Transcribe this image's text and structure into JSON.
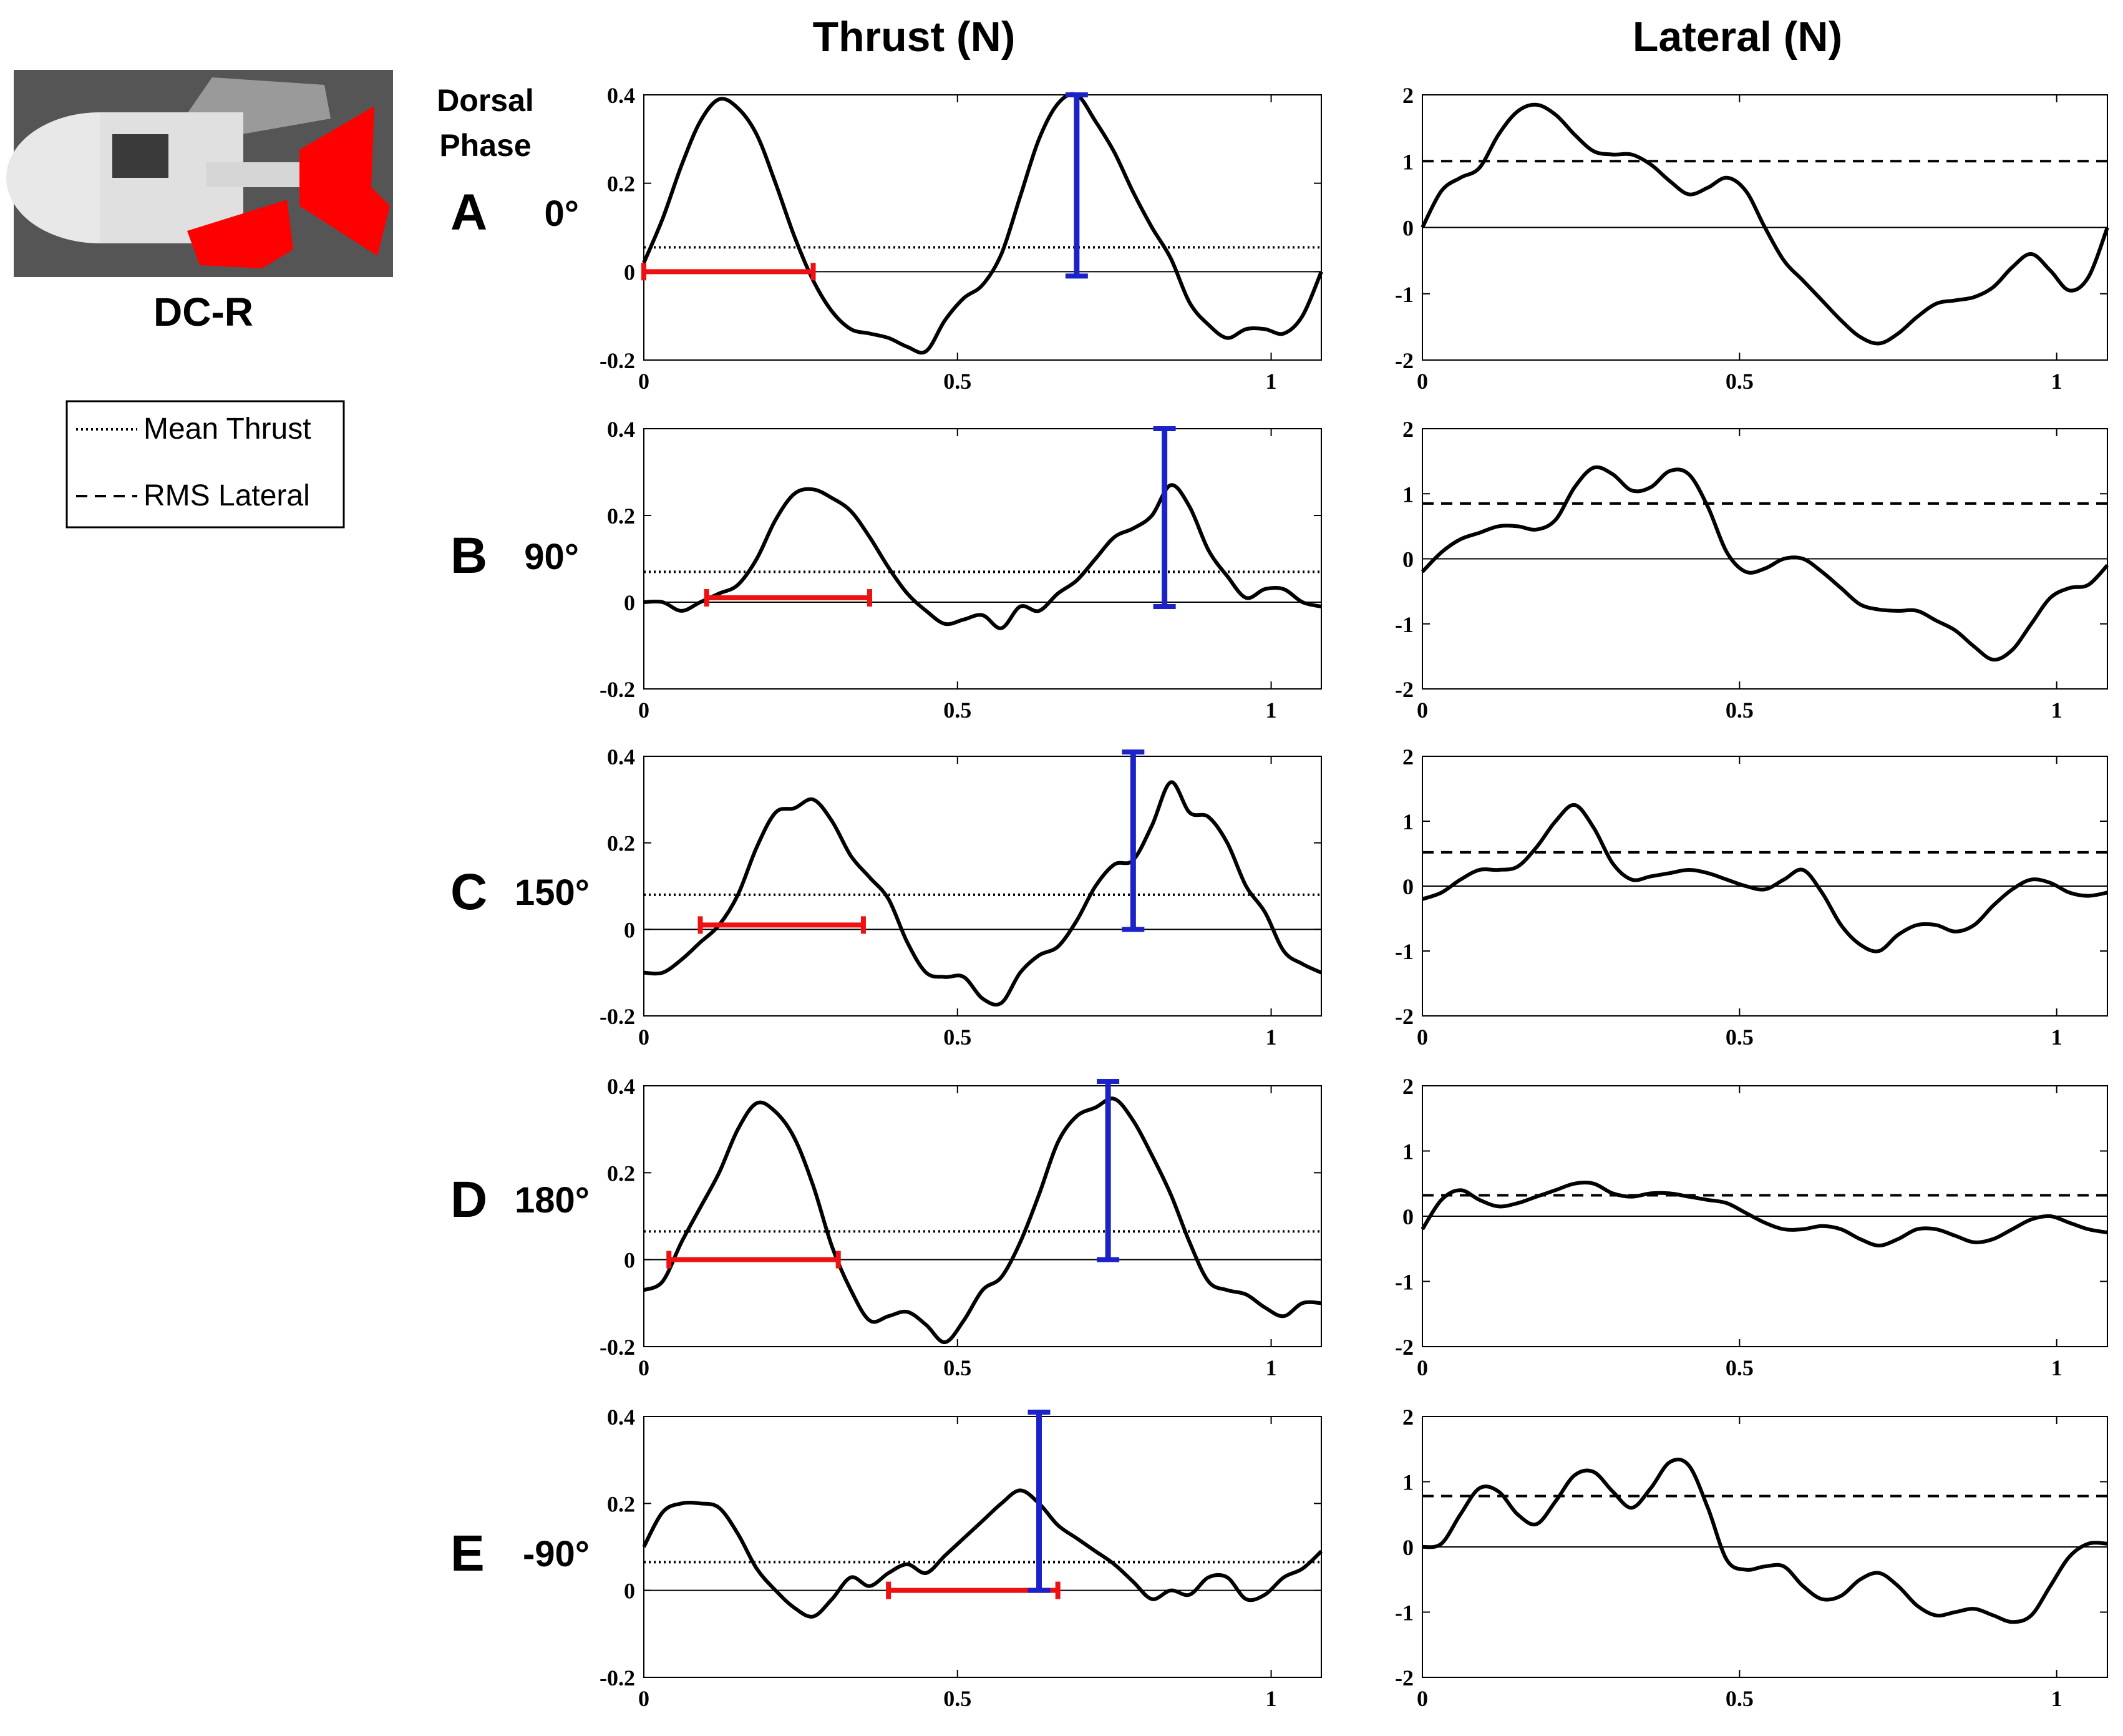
{
  "figure": {
    "model_label": "DC-R",
    "column_titles": [
      "Thrust (N)",
      "Lateral (N)"
    ],
    "dorsal_label_line1": "Dorsal",
    "dorsal_label_line2": "Phase",
    "legend": {
      "mean_label": "Mean Thrust",
      "rms_label": "RMS Lateral"
    },
    "colors": {
      "trace": "#000000",
      "red_bar": "#ee1111",
      "blue_bar": "#1a22c8",
      "fin": "#ff0000"
    }
  },
  "chart_data": [
    {
      "type": "line",
      "row": "A",
      "phase_label": "0°",
      "quantity": "Thrust (N)",
      "xlim": [
        0,
        1.08
      ],
      "ylim": [
        -0.2,
        0.4
      ],
      "xticks": [
        0,
        0.5,
        1
      ],
      "xtick_labels": [
        "0",
        "0.5",
        "1"
      ],
      "yticks": [
        -0.2,
        0,
        0.2,
        0.4
      ],
      "ytick_labels": [
        "-0.2",
        "0",
        "0.2",
        "0.4"
      ],
      "x": [
        0,
        0.03,
        0.06,
        0.09,
        0.12,
        0.15,
        0.18,
        0.21,
        0.24,
        0.27,
        0.3,
        0.33,
        0.36,
        0.39,
        0.42,
        0.45,
        0.48,
        0.51,
        0.54,
        0.57,
        0.6,
        0.63,
        0.66,
        0.69,
        0.72,
        0.75,
        0.78,
        0.81,
        0.84,
        0.87,
        0.9,
        0.93,
        0.96,
        0.99,
        1.02,
        1.05,
        1.08
      ],
      "y": [
        0.02,
        0.12,
        0.24,
        0.34,
        0.39,
        0.37,
        0.31,
        0.2,
        0.08,
        -0.02,
        -0.09,
        -0.13,
        -0.14,
        -0.15,
        -0.17,
        -0.18,
        -0.11,
        -0.06,
        -0.03,
        0.04,
        0.17,
        0.3,
        0.38,
        0.4,
        0.34,
        0.27,
        0.18,
        0.1,
        0.03,
        -0.07,
        -0.12,
        -0.15,
        -0.13,
        -0.13,
        -0.14,
        -0.1,
        0.0
      ],
      "mean": 0.055,
      "red_bar": {
        "x0": 0.0,
        "x1": 0.27,
        "y": 0.0
      },
      "blue_bar": {
        "x": 0.69,
        "y0": -0.01,
        "y1": 0.4
      }
    },
    {
      "type": "line",
      "row": "A",
      "phase_label": "0°",
      "quantity": "Lateral (N)",
      "xlim": [
        0,
        1.08
      ],
      "ylim": [
        -2,
        2
      ],
      "xticks": [
        0,
        0.5,
        1
      ],
      "xtick_labels": [
        "0",
        "0.5",
        "1"
      ],
      "yticks": [
        -2,
        -1,
        0,
        1,
        2
      ],
      "ytick_labels": [
        "-2",
        "-1",
        "0",
        "1",
        "2"
      ],
      "x": [
        0,
        0.03,
        0.06,
        0.09,
        0.12,
        0.15,
        0.18,
        0.21,
        0.24,
        0.27,
        0.3,
        0.33,
        0.36,
        0.39,
        0.42,
        0.45,
        0.48,
        0.51,
        0.54,
        0.57,
        0.6,
        0.63,
        0.66,
        0.69,
        0.72,
        0.75,
        0.78,
        0.81,
        0.84,
        0.87,
        0.9,
        0.93,
        0.96,
        0.99,
        1.02,
        1.05,
        1.08
      ],
      "y": [
        0.0,
        0.55,
        0.75,
        0.9,
        1.4,
        1.75,
        1.85,
        1.7,
        1.4,
        1.15,
        1.1,
        1.1,
        0.95,
        0.7,
        0.5,
        0.6,
        0.75,
        0.55,
        0.0,
        -0.5,
        -0.8,
        -1.1,
        -1.4,
        -1.65,
        -1.75,
        -1.6,
        -1.35,
        -1.15,
        -1.1,
        -1.05,
        -0.9,
        -0.6,
        -0.4,
        -0.65,
        -0.95,
        -0.75,
        0.0
      ],
      "rms": 1.0
    },
    {
      "type": "line",
      "row": "B",
      "phase_label": "90°",
      "quantity": "Thrust (N)",
      "xlim": [
        0,
        1.08
      ],
      "ylim": [
        -0.2,
        0.4
      ],
      "xticks": [
        0,
        0.5,
        1
      ],
      "xtick_labels": [
        "0",
        "0.5",
        "1"
      ],
      "yticks": [
        -0.2,
        0,
        0.2,
        0.4
      ],
      "ytick_labels": [
        "-0.2",
        "0",
        "0.2",
        "0.4"
      ],
      "x": [
        0,
        0.03,
        0.06,
        0.09,
        0.12,
        0.15,
        0.18,
        0.21,
        0.24,
        0.27,
        0.3,
        0.33,
        0.36,
        0.39,
        0.42,
        0.45,
        0.48,
        0.51,
        0.54,
        0.57,
        0.6,
        0.63,
        0.66,
        0.69,
        0.72,
        0.75,
        0.78,
        0.81,
        0.84,
        0.87,
        0.9,
        0.93,
        0.96,
        0.99,
        1.02,
        1.05,
        1.08
      ],
      "y": [
        0.0,
        0.0,
        -0.02,
        0.0,
        0.02,
        0.04,
        0.1,
        0.19,
        0.25,
        0.26,
        0.24,
        0.21,
        0.15,
        0.08,
        0.02,
        -0.02,
        -0.05,
        -0.04,
        -0.03,
        -0.06,
        -0.01,
        -0.02,
        0.02,
        0.05,
        0.1,
        0.15,
        0.17,
        0.2,
        0.27,
        0.22,
        0.12,
        0.06,
        0.01,
        0.03,
        0.03,
        0.0,
        -0.01
      ],
      "mean": 0.07,
      "red_bar": {
        "x0": 0.1,
        "x1": 0.36,
        "y": 0.01
      },
      "blue_bar": {
        "x": 0.83,
        "y0": -0.01,
        "y1": 0.4
      }
    },
    {
      "type": "line",
      "row": "B",
      "phase_label": "90°",
      "quantity": "Lateral (N)",
      "xlim": [
        0,
        1.08
      ],
      "ylim": [
        -2,
        2
      ],
      "xticks": [
        0,
        0.5,
        1
      ],
      "xtick_labels": [
        "0",
        "0.5",
        "1"
      ],
      "yticks": [
        -2,
        -1,
        0,
        1,
        2
      ],
      "ytick_labels": [
        "-2",
        "-1",
        "0",
        "1",
        "2"
      ],
      "x": [
        0,
        0.03,
        0.06,
        0.09,
        0.12,
        0.15,
        0.18,
        0.21,
        0.24,
        0.27,
        0.3,
        0.33,
        0.36,
        0.39,
        0.42,
        0.45,
        0.48,
        0.51,
        0.54,
        0.57,
        0.6,
        0.63,
        0.66,
        0.69,
        0.72,
        0.75,
        0.78,
        0.81,
        0.84,
        0.87,
        0.9,
        0.93,
        0.96,
        0.99,
        1.02,
        1.05,
        1.08
      ],
      "y": [
        -0.2,
        0.1,
        0.3,
        0.4,
        0.5,
        0.5,
        0.45,
        0.6,
        1.1,
        1.4,
        1.3,
        1.05,
        1.1,
        1.35,
        1.3,
        0.8,
        0.1,
        -0.2,
        -0.15,
        0.0,
        0.0,
        -0.2,
        -0.45,
        -0.7,
        -0.78,
        -0.8,
        -0.8,
        -0.95,
        -1.1,
        -1.35,
        -1.55,
        -1.4,
        -1.0,
        -0.6,
        -0.45,
        -0.4,
        -0.1
      ],
      "rms": 0.85
    },
    {
      "type": "line",
      "row": "C",
      "phase_label": "150°",
      "quantity": "Thrust (N)",
      "xlim": [
        0,
        1.08
      ],
      "ylim": [
        -0.2,
        0.4
      ],
      "xticks": [
        0,
        0.5,
        1
      ],
      "xtick_labels": [
        "0",
        "0.5",
        "1"
      ],
      "yticks": [
        -0.2,
        0,
        0.2,
        0.4
      ],
      "ytick_labels": [
        "-0.2",
        "0",
        "0.2",
        "0.4"
      ],
      "x": [
        0,
        0.03,
        0.06,
        0.09,
        0.12,
        0.15,
        0.18,
        0.21,
        0.24,
        0.27,
        0.3,
        0.33,
        0.36,
        0.39,
        0.42,
        0.45,
        0.48,
        0.51,
        0.54,
        0.57,
        0.6,
        0.63,
        0.66,
        0.69,
        0.72,
        0.75,
        0.78,
        0.81,
        0.84,
        0.87,
        0.9,
        0.93,
        0.96,
        0.99,
        1.02,
        1.05,
        1.08
      ],
      "y": [
        -0.1,
        -0.1,
        -0.07,
        -0.03,
        0.01,
        0.08,
        0.19,
        0.27,
        0.28,
        0.3,
        0.25,
        0.17,
        0.12,
        0.07,
        -0.03,
        -0.1,
        -0.11,
        -0.11,
        -0.16,
        -0.17,
        -0.1,
        -0.06,
        -0.04,
        0.02,
        0.1,
        0.15,
        0.16,
        0.24,
        0.34,
        0.27,
        0.26,
        0.2,
        0.1,
        0.04,
        -0.05,
        -0.08,
        -0.1
      ],
      "mean": 0.08,
      "red_bar": {
        "x0": 0.09,
        "x1": 0.35,
        "y": 0.01
      },
      "blue_bar": {
        "x": 0.78,
        "y0": 0.0,
        "y1": 0.41
      }
    },
    {
      "type": "line",
      "row": "C",
      "phase_label": "150°",
      "quantity": "Lateral (N)",
      "xlim": [
        0,
        1.08
      ],
      "ylim": [
        -2,
        2
      ],
      "xticks": [
        0,
        0.5,
        1
      ],
      "xtick_labels": [
        "0",
        "0.5",
        "1"
      ],
      "yticks": [
        -2,
        -1,
        0,
        1,
        2
      ],
      "ytick_labels": [
        "-2",
        "-1",
        "0",
        "1",
        "2"
      ],
      "x": [
        0,
        0.03,
        0.06,
        0.09,
        0.12,
        0.15,
        0.18,
        0.21,
        0.24,
        0.27,
        0.3,
        0.33,
        0.36,
        0.39,
        0.42,
        0.45,
        0.48,
        0.51,
        0.54,
        0.57,
        0.6,
        0.63,
        0.66,
        0.69,
        0.72,
        0.75,
        0.78,
        0.81,
        0.84,
        0.87,
        0.9,
        0.93,
        0.96,
        0.99,
        1.02,
        1.05,
        1.08
      ],
      "y": [
        -0.2,
        -0.1,
        0.1,
        0.25,
        0.25,
        0.3,
        0.6,
        1.0,
        1.25,
        0.9,
        0.35,
        0.1,
        0.15,
        0.2,
        0.25,
        0.2,
        0.1,
        0.0,
        -0.05,
        0.1,
        0.25,
        -0.1,
        -0.6,
        -0.9,
        -1.0,
        -0.75,
        -0.6,
        -0.6,
        -0.7,
        -0.6,
        -0.3,
        -0.05,
        0.1,
        0.05,
        -0.1,
        -0.15,
        -0.1
      ],
      "rms": 0.52
    },
    {
      "type": "line",
      "row": "D",
      "phase_label": "180°",
      "quantity": "Thrust (N)",
      "xlim": [
        0,
        1.08
      ],
      "ylim": [
        -0.2,
        0.4
      ],
      "xticks": [
        0,
        0.5,
        1
      ],
      "xtick_labels": [
        "0",
        "0.5",
        "1"
      ],
      "yticks": [
        -0.2,
        0,
        0.2,
        0.4
      ],
      "ytick_labels": [
        "-0.2",
        "0",
        "0.2",
        "0.4"
      ],
      "x": [
        0,
        0.03,
        0.06,
        0.09,
        0.12,
        0.15,
        0.18,
        0.21,
        0.24,
        0.27,
        0.3,
        0.33,
        0.36,
        0.39,
        0.42,
        0.45,
        0.48,
        0.51,
        0.54,
        0.57,
        0.6,
        0.63,
        0.66,
        0.69,
        0.72,
        0.75,
        0.78,
        0.81,
        0.84,
        0.87,
        0.9,
        0.93,
        0.96,
        0.99,
        1.02,
        1.05,
        1.08
      ],
      "y": [
        -0.07,
        -0.05,
        0.04,
        0.12,
        0.2,
        0.3,
        0.36,
        0.34,
        0.28,
        0.17,
        0.03,
        -0.07,
        -0.14,
        -0.13,
        -0.12,
        -0.15,
        -0.19,
        -0.14,
        -0.07,
        -0.04,
        0.04,
        0.15,
        0.27,
        0.33,
        0.35,
        0.37,
        0.32,
        0.24,
        0.15,
        0.04,
        -0.05,
        -0.07,
        -0.08,
        -0.11,
        -0.13,
        -0.1,
        -0.1
      ],
      "mean": 0.065,
      "red_bar": {
        "x0": 0.04,
        "x1": 0.31,
        "y": 0.0
      },
      "blue_bar": {
        "x": 0.74,
        "y0": 0.0,
        "y1": 0.41
      }
    },
    {
      "type": "line",
      "row": "D",
      "phase_label": "180°",
      "quantity": "Lateral (N)",
      "xlim": [
        0,
        1.08
      ],
      "ylim": [
        -2,
        2
      ],
      "xticks": [
        0,
        0.5,
        1
      ],
      "xtick_labels": [
        "0",
        "0.5",
        "1"
      ],
      "yticks": [
        -2,
        -1,
        0,
        1,
        2
      ],
      "ytick_labels": [
        "-2",
        "-1",
        "0",
        "1",
        "2"
      ],
      "x": [
        0,
        0.03,
        0.06,
        0.09,
        0.12,
        0.15,
        0.18,
        0.21,
        0.24,
        0.27,
        0.3,
        0.33,
        0.36,
        0.39,
        0.42,
        0.45,
        0.48,
        0.51,
        0.54,
        0.57,
        0.6,
        0.63,
        0.66,
        0.69,
        0.72,
        0.75,
        0.78,
        0.81,
        0.84,
        0.87,
        0.9,
        0.93,
        0.96,
        0.99,
        1.02,
        1.05,
        1.08
      ],
      "y": [
        -0.2,
        0.25,
        0.4,
        0.25,
        0.15,
        0.2,
        0.3,
        0.4,
        0.5,
        0.5,
        0.35,
        0.3,
        0.35,
        0.35,
        0.3,
        0.25,
        0.2,
        0.05,
        -0.1,
        -0.2,
        -0.2,
        -0.15,
        -0.2,
        -0.35,
        -0.45,
        -0.35,
        -0.2,
        -0.2,
        -0.3,
        -0.4,
        -0.35,
        -0.2,
        -0.05,
        0.0,
        -0.1,
        -0.2,
        -0.25
      ],
      "rms": 0.32
    },
    {
      "type": "line",
      "row": "E",
      "phase_label": "-90°",
      "quantity": "Thrust (N)",
      "xlim": [
        0,
        1.08
      ],
      "ylim": [
        -0.2,
        0.4
      ],
      "xticks": [
        0,
        0.5,
        1
      ],
      "xtick_labels": [
        "0",
        "0.5",
        "1"
      ],
      "yticks": [
        -0.2,
        0,
        0.2,
        0.4
      ],
      "ytick_labels": [
        "-0.2",
        "0",
        "0.2",
        "0.4"
      ],
      "x": [
        0,
        0.03,
        0.06,
        0.09,
        0.12,
        0.15,
        0.18,
        0.21,
        0.24,
        0.27,
        0.3,
        0.33,
        0.36,
        0.39,
        0.42,
        0.45,
        0.48,
        0.51,
        0.54,
        0.57,
        0.6,
        0.63,
        0.66,
        0.69,
        0.72,
        0.75,
        0.78,
        0.81,
        0.84,
        0.87,
        0.9,
        0.93,
        0.96,
        0.99,
        1.02,
        1.05,
        1.08
      ],
      "y": [
        0.1,
        0.18,
        0.2,
        0.2,
        0.19,
        0.13,
        0.05,
        0.0,
        -0.04,
        -0.06,
        -0.02,
        0.03,
        0.01,
        0.04,
        0.06,
        0.04,
        0.08,
        0.12,
        0.16,
        0.2,
        0.23,
        0.2,
        0.15,
        0.12,
        0.09,
        0.06,
        0.02,
        -0.02,
        0.0,
        -0.01,
        0.03,
        0.03,
        -0.02,
        -0.01,
        0.03,
        0.05,
        0.09
      ],
      "mean": 0.065,
      "red_bar": {
        "x0": 0.39,
        "x1": 0.66,
        "y": 0.0
      },
      "blue_bar": {
        "x": 0.63,
        "y0": 0.0,
        "y1": 0.41
      }
    },
    {
      "type": "line",
      "row": "E",
      "phase_label": "-90°",
      "quantity": "Lateral (N)",
      "xlim": [
        0,
        1.08
      ],
      "ylim": [
        -2,
        2
      ],
      "xticks": [
        0,
        0.5,
        1
      ],
      "xtick_labels": [
        "0",
        "0.5",
        "1"
      ],
      "yticks": [
        -2,
        -1,
        0,
        1,
        2
      ],
      "ytick_labels": [
        "-2",
        "-1",
        "0",
        "1",
        "2"
      ],
      "x": [
        0,
        0.03,
        0.06,
        0.09,
        0.12,
        0.15,
        0.18,
        0.21,
        0.24,
        0.27,
        0.3,
        0.33,
        0.36,
        0.39,
        0.42,
        0.45,
        0.48,
        0.51,
        0.54,
        0.57,
        0.6,
        0.63,
        0.66,
        0.69,
        0.72,
        0.75,
        0.78,
        0.81,
        0.84,
        0.87,
        0.9,
        0.93,
        0.96,
        0.99,
        1.02,
        1.05,
        1.08
      ],
      "y": [
        0.0,
        0.05,
        0.5,
        0.9,
        0.85,
        0.5,
        0.35,
        0.7,
        1.1,
        1.15,
        0.85,
        0.6,
        0.9,
        1.3,
        1.25,
        0.6,
        -0.2,
        -0.35,
        -0.3,
        -0.3,
        -0.6,
        -0.8,
        -0.75,
        -0.5,
        -0.4,
        -0.6,
        -0.9,
        -1.05,
        -1.0,
        -0.95,
        -1.05,
        -1.15,
        -1.05,
        -0.6,
        -0.15,
        0.05,
        0.05
      ],
      "rms": 0.78
    }
  ]
}
